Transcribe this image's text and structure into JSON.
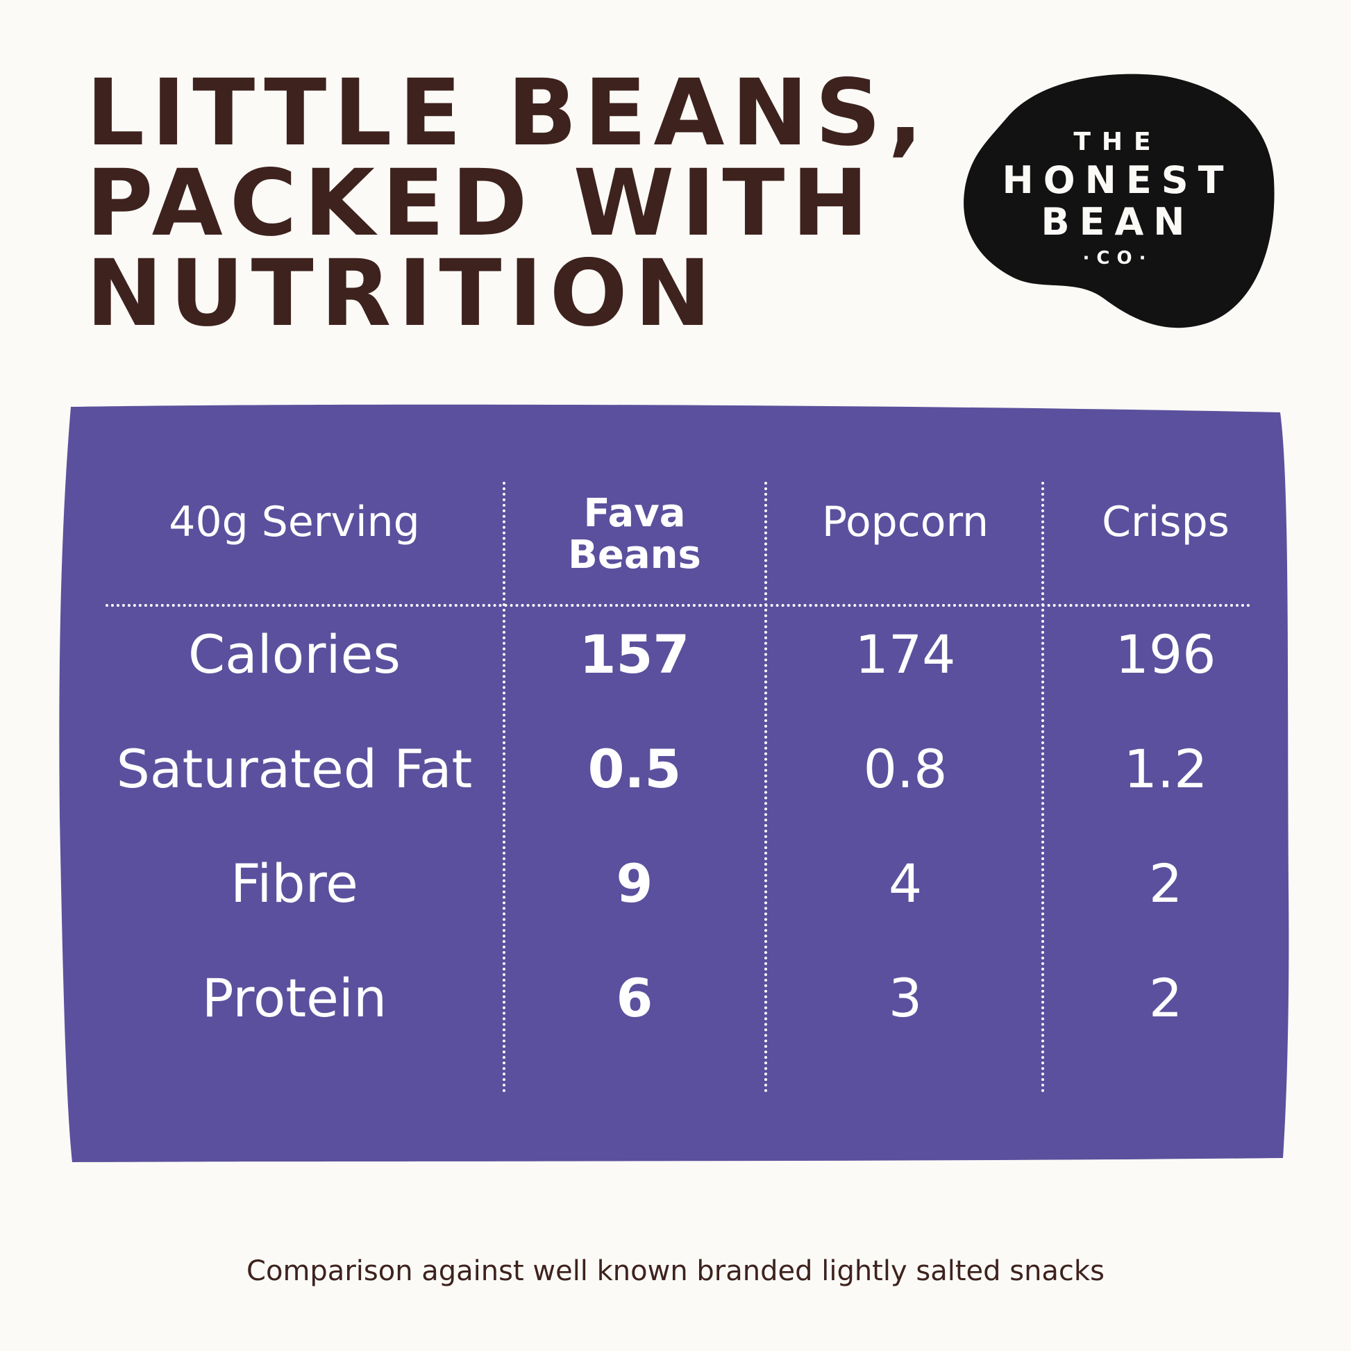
{
  "headline": {
    "line1": "LITTLE BEANS,",
    "line2": "PACKED WITH",
    "line3": "NUTRITION"
  },
  "logo": {
    "the": "THE",
    "honest": "HONEST",
    "bean": "BEAN",
    "co": "·CO·"
  },
  "table": {
    "header": {
      "serving": "40g Serving",
      "col1_line1": "Fava",
      "col1_line2": "Beans",
      "col2": "Popcorn",
      "col3": "Crisps"
    },
    "rows": [
      {
        "label": "Calories",
        "fava": "157",
        "popcorn": "174",
        "crisps": "196"
      },
      {
        "label": "Saturated Fat",
        "fava": "0.5",
        "popcorn": "0.8",
        "crisps": "1.2"
      },
      {
        "label": "Fibre",
        "fava": "9",
        "popcorn": "4",
        "crisps": "2"
      },
      {
        "label": "Protein",
        "fava": "6",
        "popcorn": "3",
        "crisps": "2"
      }
    ]
  },
  "footnote": "Comparison against well known branded lightly salted snacks",
  "colors": {
    "background": "#fbfaf7",
    "headline": "#3e221d",
    "panel": "#5b509d",
    "logo_blob": "#121212"
  }
}
